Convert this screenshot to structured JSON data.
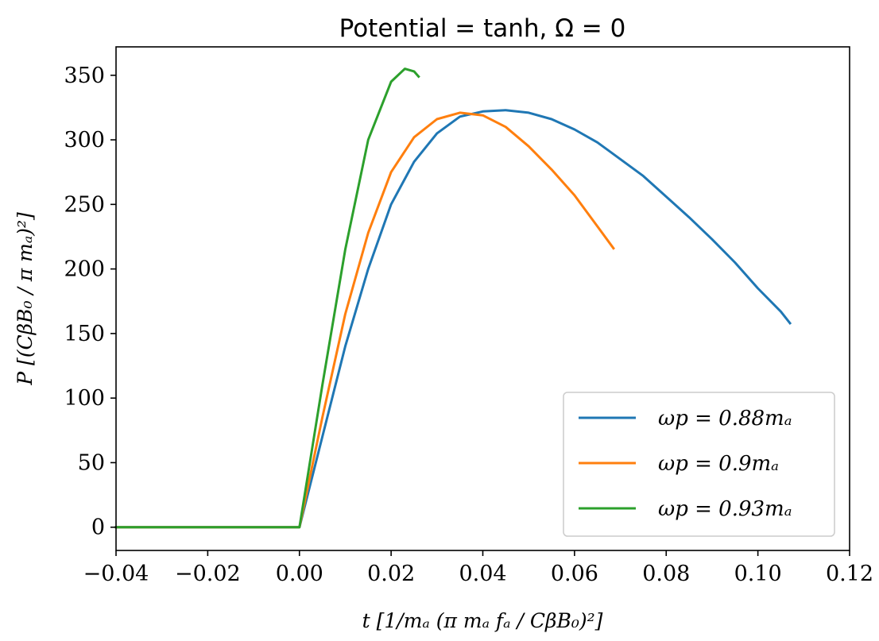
{
  "chart_data": {
    "type": "line",
    "title": "Potential = tanh, Ω = 0",
    "xlabel": "t [1/mₐ (π mₐ fₐ / CβB₀)²]",
    "ylabel": "P [(CβB₀ / π mₐ)²]",
    "xlim": [
      -0.04,
      0.12
    ],
    "ylim": [
      -18,
      372
    ],
    "xticks": [
      -0.04,
      -0.02,
      0.0,
      0.02,
      0.04,
      0.06,
      0.08,
      0.1,
      0.12
    ],
    "xtick_labels": [
      "−0.04",
      "−0.02",
      "0.00",
      "0.02",
      "0.04",
      "0.06",
      "0.08",
      "0.10",
      "0.12"
    ],
    "yticks": [
      0,
      50,
      100,
      150,
      200,
      250,
      300,
      350
    ],
    "ytick_labels": [
      "0",
      "50",
      "100",
      "150",
      "200",
      "250",
      "300",
      "350"
    ],
    "grid": false,
    "legend_position": "lower-right",
    "series": [
      {
        "name": "ωp = 0.88mₐ",
        "color": "#1f77b4",
        "x": [
          -0.04,
          0.0,
          0.005,
          0.01,
          0.015,
          0.02,
          0.025,
          0.03,
          0.035,
          0.04,
          0.045,
          0.05,
          0.055,
          0.06,
          0.065,
          0.07,
          0.075,
          0.08,
          0.085,
          0.09,
          0.095,
          0.1,
          0.105,
          0.107
        ],
        "y": [
          0,
          0,
          70,
          140,
          200,
          250,
          283,
          305,
          318,
          322,
          323,
          321,
          316,
          308,
          298,
          285,
          272,
          256,
          240,
          223,
          205,
          185,
          167,
          158
        ]
      },
      {
        "name": "ωp = 0.9mₐ",
        "color": "#ff7f0e",
        "x": [
          -0.04,
          0.0,
          0.005,
          0.01,
          0.015,
          0.02,
          0.025,
          0.03,
          0.035,
          0.04,
          0.045,
          0.05,
          0.055,
          0.06,
          0.065,
          0.0685
        ],
        "y": [
          0,
          0,
          85,
          165,
          228,
          275,
          302,
          316,
          321,
          319,
          310,
          295,
          277,
          257,
          233,
          216
        ]
      },
      {
        "name": "ωp = 0.93mₐ",
        "color": "#2ca02c",
        "x": [
          -0.04,
          0.0,
          0.005,
          0.01,
          0.015,
          0.02,
          0.023,
          0.025,
          0.026
        ],
        "y": [
          0,
          0,
          110,
          215,
          300,
          345,
          355,
          353,
          349
        ]
      }
    ]
  }
}
